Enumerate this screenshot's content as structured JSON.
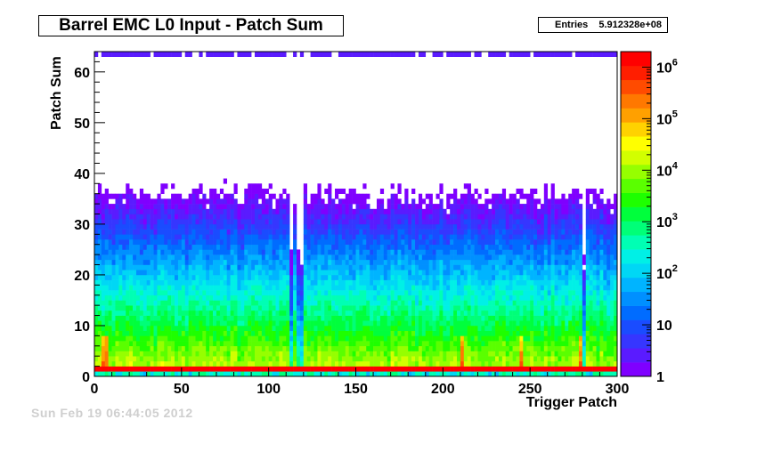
{
  "chart_data": {
    "type": "heatmap",
    "title": "Barrel EMC L0 Input - Patch Sum",
    "xlabel": "Trigger Patch",
    "ylabel": "Patch Sum",
    "xlim": [
      0,
      300
    ],
    "ylim": [
      0,
      64
    ],
    "x_ticks": [
      0,
      50,
      100,
      150,
      200,
      250,
      300
    ],
    "y_ticks": [
      0,
      10,
      20,
      30,
      40,
      50,
      60
    ],
    "z_scale": "log",
    "zlim": [
      1,
      2000000
    ],
    "z_ticks": [
      {
        "value": 1,
        "label": "1"
      },
      {
        "value": 10,
        "label": "10"
      },
      {
        "value": 100,
        "label": "10",
        "exp": "2"
      },
      {
        "value": 1000,
        "label": "10",
        "exp": "3"
      },
      {
        "value": 10000,
        "label": "10",
        "exp": "4"
      },
      {
        "value": 100000,
        "label": "10",
        "exp": "5"
      },
      {
        "value": 1000000,
        "label": "10",
        "exp": "6"
      }
    ],
    "palette": [
      "#7f00ff",
      "#5a1bff",
      "#3636ff",
      "#1a4cff",
      "#006cff",
      "#0090ff",
      "#00b4ff",
      "#00d7f5",
      "#00f0e6",
      "#00ffb4",
      "#00ff78",
      "#00ff3c",
      "#1eff00",
      "#5aff00",
      "#96ff00",
      "#d2ff00",
      "#ffff00",
      "#ffd200",
      "#ffa000",
      "#ff7800",
      "#ff4b00",
      "#ff1e00",
      "#ff0000"
    ],
    "entries_label": "Entries",
    "entries_value": "5.912328e+08",
    "profile": {
      "row_0": 200,
      "row_1": 1500000,
      "row_2": 12000,
      "decay_per_unit": 0.168,
      "hot_columns": [
        4,
        6,
        210,
        244,
        278
      ],
      "dead_columns": [
        112,
        117,
        280
      ]
    }
  },
  "footer_text": "Sun Feb 19 06:44:05 2012"
}
